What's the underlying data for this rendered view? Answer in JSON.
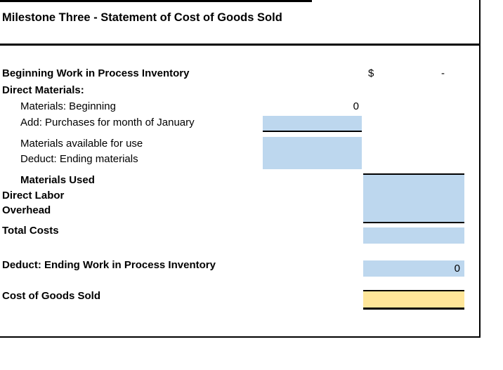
{
  "title": "Milestone Three - Statement of Cost of Goods Sold",
  "colors": {
    "input_fill": "#BDD7EE",
    "result_fill": "#FFE699",
    "border": "#000000",
    "text": "#000000",
    "background": "#FFFFFF"
  },
  "statement": {
    "beginning_wip": {
      "label": "Beginning Work in Process Inventory",
      "currency": "$",
      "value": "-"
    },
    "direct_materials_header": {
      "label": "Direct Materials:"
    },
    "materials_beginning": {
      "label": "Materials: Beginning",
      "value": "0"
    },
    "purchases": {
      "label": "Add: Purchases for month of January",
      "value": ""
    },
    "materials_available": {
      "label": "Materials available for use",
      "value": ""
    },
    "ending_materials": {
      "label": "Deduct: Ending materials",
      "value": ""
    },
    "materials_used": {
      "label": "Materials Used",
      "value": ""
    },
    "direct_labor": {
      "label": "Direct Labor"
    },
    "overhead": {
      "label": "Overhead"
    },
    "total_costs": {
      "label": "Total Costs",
      "value": ""
    },
    "ending_wip": {
      "label": "Deduct: Ending Work in Process Inventory",
      "value": "0"
    },
    "cost_of_goods_sold": {
      "label": "Cost of Goods Sold",
      "value": ""
    }
  }
}
